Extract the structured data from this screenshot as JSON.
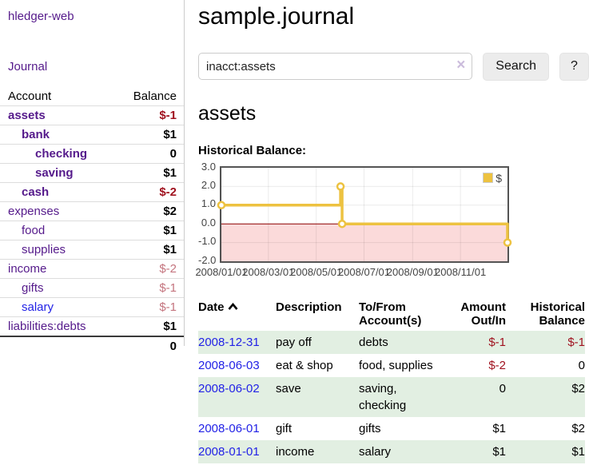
{
  "app": {
    "title": "hledger-web",
    "nav_journal": "Journal"
  },
  "sidebar": {
    "columns": {
      "account": "Account",
      "balance": "Balance"
    },
    "accounts": [
      {
        "name": "assets",
        "depth": 0,
        "balance": "$-1",
        "bold": true,
        "neg": "strong",
        "link": "purple"
      },
      {
        "name": "bank",
        "depth": 1,
        "balance": "$1",
        "bold": true,
        "neg": "none",
        "link": "purple"
      },
      {
        "name": "checking",
        "depth": 2,
        "balance": "0",
        "bold": true,
        "neg": "none",
        "link": "purple"
      },
      {
        "name": "saving",
        "depth": 2,
        "balance": "$1",
        "bold": true,
        "neg": "none",
        "link": "purple"
      },
      {
        "name": "cash",
        "depth": 1,
        "balance": "$-2",
        "bold": true,
        "neg": "strong",
        "link": "purple"
      },
      {
        "name": "expenses",
        "depth": 0,
        "balance": "$2",
        "bold": false,
        "neg": "none",
        "link": "purple"
      },
      {
        "name": "food",
        "depth": 1,
        "balance": "$1",
        "bold": false,
        "neg": "none",
        "link": "purple"
      },
      {
        "name": "supplies",
        "depth": 1,
        "balance": "$1",
        "bold": false,
        "neg": "none",
        "link": "purple"
      },
      {
        "name": "income",
        "depth": 0,
        "balance": "$-2",
        "bold": false,
        "neg": "dim",
        "link": "purple"
      },
      {
        "name": "gifts",
        "depth": 1,
        "balance": "$-1",
        "bold": false,
        "neg": "dim",
        "link": "purple"
      },
      {
        "name": "salary",
        "depth": 1,
        "balance": "$-1",
        "bold": false,
        "neg": "dim",
        "link": "blue"
      },
      {
        "name": "liabilities:debts",
        "depth": 0,
        "balance": "$1",
        "bold": false,
        "neg": "none",
        "link": "purple"
      }
    ],
    "total": "0"
  },
  "header": {
    "title": "sample.journal"
  },
  "search": {
    "value": "inacct:assets",
    "clear_icon": "×",
    "button_label": "Search",
    "help_label": "?"
  },
  "account_page": {
    "heading": "assets",
    "chart_label": "Historical Balance:"
  },
  "chart_data": {
    "type": "line",
    "title": "Historical Balance:",
    "step": true,
    "series": [
      {
        "name": "$",
        "color": "#edc240",
        "points": [
          [
            "2008-01-01",
            1
          ],
          [
            "2008-06-01",
            2
          ],
          [
            "2008-06-03",
            0
          ],
          [
            "2008-12-31",
            -1
          ]
        ]
      }
    ],
    "x_start": "2008-01-01",
    "x_end": "2008-12-31",
    "x_ticks": [
      "2008/01/01",
      "2008/03/01",
      "2008/05/01",
      "2008/07/01",
      "2008/09/01",
      "2008/11/01"
    ],
    "y_ticks": [
      "3.0",
      "2.0",
      "1.0",
      "0.0",
      "-1.0",
      "-2.0"
    ],
    "ylim": [
      -2,
      3
    ],
    "grid": true,
    "legend": {
      "label": "$",
      "position": "top-right"
    },
    "negative_region_fill": "#fbdada",
    "zero_line_color": "#8b0000"
  },
  "register": {
    "columns": {
      "date": "Date",
      "description": "Description",
      "accounts": "To/From Account(s)",
      "amount": "Amount Out/In",
      "balance": "Historical Balance"
    },
    "sort": {
      "column": "date",
      "direction": "asc"
    },
    "rows": [
      {
        "date": "2008-12-31",
        "description": "pay off",
        "accounts": "debts",
        "amount": "$-1",
        "amount_neg": true,
        "balance": "$-1",
        "balance_neg": true
      },
      {
        "date": "2008-06-03",
        "description": "eat & shop",
        "accounts": "food, supplies",
        "amount": "$-2",
        "amount_neg": true,
        "balance": "0",
        "balance_neg": false
      },
      {
        "date": "2008-06-02",
        "description": "save",
        "accounts": "saving, checking",
        "amount": "0",
        "amount_neg": false,
        "balance": "$2",
        "balance_neg": false
      },
      {
        "date": "2008-06-01",
        "description": "gift",
        "accounts": "gifts",
        "amount": "$1",
        "amount_neg": false,
        "balance": "$2",
        "balance_neg": false
      },
      {
        "date": "2008-01-01",
        "description": "income",
        "accounts": "salary",
        "amount": "$1",
        "amount_neg": false,
        "balance": "$1",
        "balance_neg": false
      }
    ]
  },
  "colors": {
    "link_purple": "#551a8b",
    "link_blue": "#2222e6",
    "negative_strong": "#a0121f",
    "negative_dim": "#c4747e",
    "row_stripe_green": "#e2efe2",
    "series_gold": "#edc240",
    "negative_region_pink": "#fbdada",
    "zero_line": "#8b0000",
    "button_bg": "#ececec"
  }
}
